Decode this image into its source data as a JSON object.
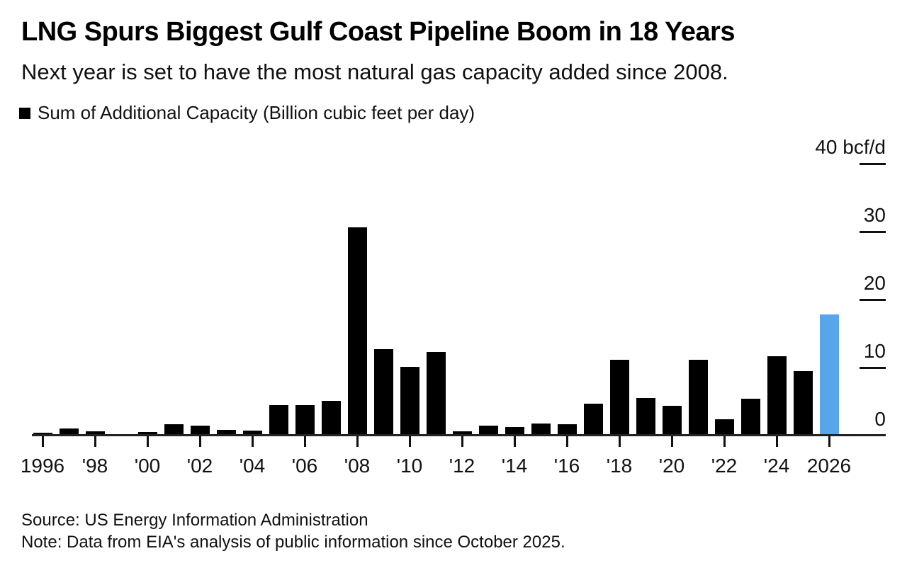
{
  "header": {
    "title": "LNG Spurs Biggest Gulf Coast Pipeline Boom in 18 Years",
    "subtitle": "Next year is set to have the most natural gas capacity added since 2008.",
    "legend": {
      "label": "Sum of Additional Capacity (Billion cubic feet per day)",
      "swatch_color": "#000000"
    }
  },
  "chart_data": {
    "type": "bar",
    "title": "LNG Spurs Biggest Gulf Coast Pipeline Boom in 18 Years",
    "subtitle": "Next year is set to have the most natural gas capacity added since 2008.",
    "series_name": "Sum of Additional Capacity (Billion cubic feet per day)",
    "unit": "bcf/d",
    "grid": false,
    "legend_position": "top-left",
    "x": [
      1996,
      1997,
      1998,
      1999,
      2000,
      2001,
      2002,
      2003,
      2004,
      2005,
      2006,
      2007,
      2008,
      2009,
      2010,
      2011,
      2012,
      2013,
      2014,
      2015,
      2016,
      2017,
      2018,
      2019,
      2020,
      2021,
      2022,
      2023,
      2024,
      2025,
      2026
    ],
    "values": [
      0.4,
      1.0,
      0.6,
      0.2,
      0.5,
      1.7,
      1.5,
      0.8,
      0.7,
      4.5,
      4.5,
      5.1,
      30.6,
      12.7,
      10.1,
      12.3,
      0.6,
      1.5,
      1.3,
      1.8,
      1.7,
      4.7,
      11.1,
      5.5,
      4.4,
      11.1,
      2.4,
      5.4,
      11.7,
      9.5,
      17.8
    ],
    "bar_color": "#000000",
    "highlight": {
      "year": 2026,
      "color": "#57A5EA"
    },
    "y_axis": {
      "position": "right",
      "ylim": [
        0,
        42
      ],
      "ticks": [
        0,
        10,
        20,
        30,
        40
      ],
      "tick_labels": [
        "0",
        "10",
        "20",
        "30",
        "40 bcf/d"
      ]
    },
    "x_axis": {
      "tick_labels": [
        {
          "year": 1996,
          "label": "1996"
        },
        {
          "year": 1998,
          "label": "'98"
        },
        {
          "year": 2000,
          "label": "'00"
        },
        {
          "year": 2002,
          "label": "'02"
        },
        {
          "year": 2004,
          "label": "'04"
        },
        {
          "year": 2006,
          "label": "'06"
        },
        {
          "year": 2008,
          "label": "'08"
        },
        {
          "year": 2010,
          "label": "'10"
        },
        {
          "year": 2012,
          "label": "'12"
        },
        {
          "year": 2014,
          "label": "'14"
        },
        {
          "year": 2016,
          "label": "'16"
        },
        {
          "year": 2018,
          "label": "'18"
        },
        {
          "year": 2020,
          "label": "'20"
        },
        {
          "year": 2022,
          "label": "'22"
        },
        {
          "year": 2024,
          "label": "'24"
        },
        {
          "year": 2026,
          "label": "2026"
        }
      ]
    }
  },
  "footer": {
    "source": "Source: US Energy Information Administration",
    "note": "Note: Data from EIA's analysis of public information since October 2025."
  }
}
